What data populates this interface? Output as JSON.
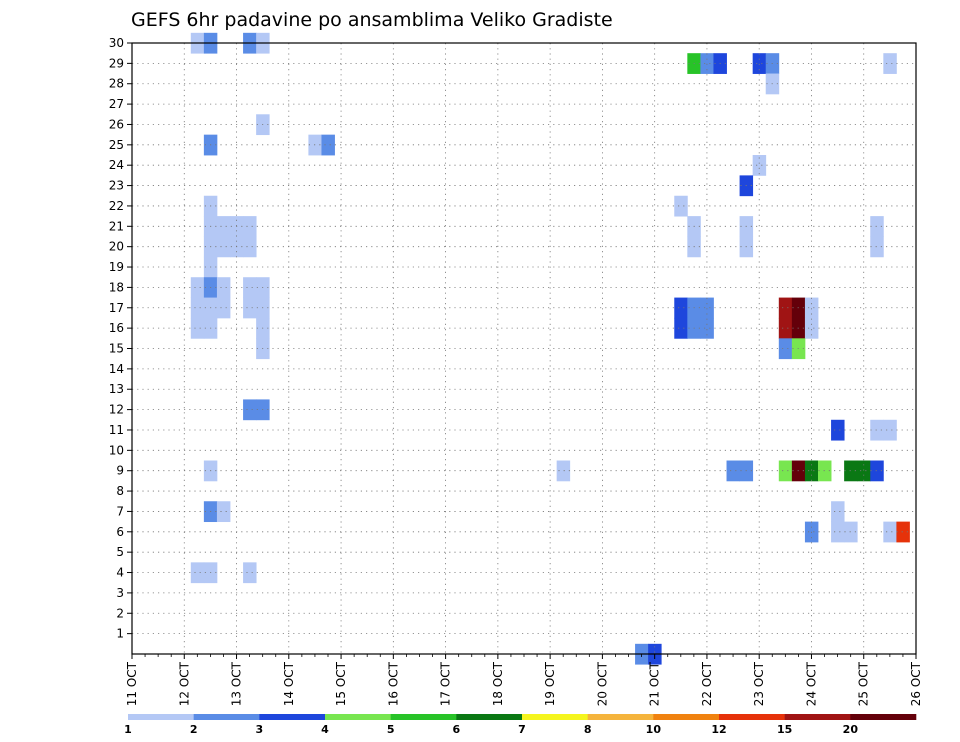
{
  "chart_data": {
    "type": "heatmap",
    "title": "GEFS 6hr padavine po ansamblima Veliko Gradiste",
    "xlabel": "",
    "ylabel": "",
    "x_tick_labels": [
      "11 OCT",
      "12 OCT",
      "13 OCT",
      "14 OCT",
      "15 OCT",
      "16 OCT",
      "17 OCT",
      "18 OCT",
      "19 OCT",
      "20 OCT",
      "21 OCT",
      "22 OCT",
      "23 OCT",
      "24 OCT",
      "25 OCT",
      "26 OCT"
    ],
    "y_tick_labels": [
      "1",
      "2",
      "3",
      "4",
      "5",
      "6",
      "7",
      "8",
      "9",
      "10",
      "11",
      "12",
      "13",
      "14",
      "15",
      "16",
      "17",
      "18",
      "19",
      "20",
      "21",
      "22",
      "23",
      "24",
      "25",
      "26",
      "27",
      "28",
      "29",
      "30"
    ],
    "xlim_days": [
      11,
      26
    ],
    "ylim_members": [
      0,
      30
    ],
    "grid": true,
    "colorbar": {
      "labels": [
        "1",
        "2",
        "3",
        "4",
        "5",
        "6",
        "7",
        "8",
        "10",
        "12",
        "15",
        "20"
      ],
      "colors": [
        "#b4c8f5",
        "#5a8ce6",
        "#1e46dc",
        "#78e650",
        "#28c328",
        "#0a7814",
        "#f5f51e",
        "#f5b43c",
        "#f0820f",
        "#e6320a",
        "#a01414",
        "#64000a"
      ]
    },
    "cells": [
      {
        "day": 12.25,
        "member": 30,
        "level": 0
      },
      {
        "day": 12.5,
        "member": 30,
        "level": 1
      },
      {
        "day": 13.25,
        "member": 30,
        "level": 1
      },
      {
        "day": 13.5,
        "member": 30,
        "level": 0
      },
      {
        "day": 21.75,
        "member": 29,
        "level": 4
      },
      {
        "day": 22.0,
        "member": 29,
        "level": 1
      },
      {
        "day": 22.25,
        "member": 29,
        "level": 2
      },
      {
        "day": 23.0,
        "member": 29,
        "level": 2
      },
      {
        "day": 23.25,
        "member": 29,
        "level": 1
      },
      {
        "day": 25.5,
        "member": 29,
        "level": 0
      },
      {
        "day": 23.25,
        "member": 28,
        "level": 0
      },
      {
        "day": 13.5,
        "member": 26,
        "level": 0
      },
      {
        "day": 12.5,
        "member": 25,
        "level": 1
      },
      {
        "day": 14.5,
        "member": 25,
        "level": 0
      },
      {
        "day": 14.75,
        "member": 25,
        "level": 1
      },
      {
        "day": 23.0,
        "member": 24,
        "level": 0
      },
      {
        "day": 22.75,
        "member": 23,
        "level": 2
      },
      {
        "day": 12.5,
        "member": 22,
        "level": 0
      },
      {
        "day": 21.5,
        "member": 22,
        "level": 0
      },
      {
        "day": 12.5,
        "member": 21,
        "level": 0
      },
      {
        "day": 12.75,
        "member": 21,
        "level": 0
      },
      {
        "day": 13.0,
        "member": 21,
        "level": 0
      },
      {
        "day": 13.25,
        "member": 21,
        "level": 0
      },
      {
        "day": 21.75,
        "member": 21,
        "level": 0
      },
      {
        "day": 22.75,
        "member": 21,
        "level": 0
      },
      {
        "day": 25.25,
        "member": 21,
        "level": 0
      },
      {
        "day": 12.5,
        "member": 20,
        "level": 0
      },
      {
        "day": 12.75,
        "member": 20,
        "level": 0
      },
      {
        "day": 13.0,
        "member": 20,
        "level": 0
      },
      {
        "day": 13.25,
        "member": 20,
        "level": 0
      },
      {
        "day": 21.75,
        "member": 20,
        "level": 0
      },
      {
        "day": 22.75,
        "member": 20,
        "level": 0
      },
      {
        "day": 25.25,
        "member": 20,
        "level": 0
      },
      {
        "day": 12.5,
        "member": 19,
        "level": 0
      },
      {
        "day": 12.25,
        "member": 18,
        "level": 0
      },
      {
        "day": 12.5,
        "member": 18,
        "level": 1
      },
      {
        "day": 12.75,
        "member": 18,
        "level": 0
      },
      {
        "day": 13.25,
        "member": 18,
        "level": 0
      },
      {
        "day": 13.5,
        "member": 18,
        "level": 0
      },
      {
        "day": 12.25,
        "member": 17,
        "level": 0
      },
      {
        "day": 12.5,
        "member": 17,
        "level": 0
      },
      {
        "day": 12.75,
        "member": 17,
        "level": 0
      },
      {
        "day": 13.25,
        "member": 17,
        "level": 0
      },
      {
        "day": 13.5,
        "member": 17,
        "level": 0
      },
      {
        "day": 21.5,
        "member": 17,
        "level": 2
      },
      {
        "day": 21.75,
        "member": 17,
        "level": 1
      },
      {
        "day": 22.0,
        "member": 17,
        "level": 1
      },
      {
        "day": 23.5,
        "member": 17,
        "level": 10
      },
      {
        "day": 23.75,
        "member": 17,
        "level": 11
      },
      {
        "day": 24.0,
        "member": 17,
        "level": 0
      },
      {
        "day": 12.25,
        "member": 16,
        "level": 0
      },
      {
        "day": 12.5,
        "member": 16,
        "level": 0
      },
      {
        "day": 13.5,
        "member": 16,
        "level": 0
      },
      {
        "day": 21.5,
        "member": 16,
        "level": 2
      },
      {
        "day": 21.75,
        "member": 16,
        "level": 1
      },
      {
        "day": 22.0,
        "member": 16,
        "level": 1
      },
      {
        "day": 23.5,
        "member": 16,
        "level": 10
      },
      {
        "day": 23.75,
        "member": 16,
        "level": 11
      },
      {
        "day": 24.0,
        "member": 16,
        "level": 0
      },
      {
        "day": 13.5,
        "member": 15,
        "level": 0
      },
      {
        "day": 23.5,
        "member": 15,
        "level": 1
      },
      {
        "day": 23.75,
        "member": 15,
        "level": 3
      },
      {
        "day": 13.25,
        "member": 12,
        "level": 1
      },
      {
        "day": 13.5,
        "member": 12,
        "level": 1
      },
      {
        "day": 24.5,
        "member": 11,
        "level": 2
      },
      {
        "day": 25.25,
        "member": 11,
        "level": 0
      },
      {
        "day": 25.5,
        "member": 11,
        "level": 0
      },
      {
        "day": 12.5,
        "member": 9,
        "level": 0
      },
      {
        "day": 19.25,
        "member": 9,
        "level": 0
      },
      {
        "day": 22.5,
        "member": 9,
        "level": 1
      },
      {
        "day": 22.75,
        "member": 9,
        "level": 1
      },
      {
        "day": 23.5,
        "member": 9,
        "level": 3
      },
      {
        "day": 23.75,
        "member": 9,
        "level": 11
      },
      {
        "day": 24.0,
        "member": 9,
        "level": 5
      },
      {
        "day": 24.25,
        "member": 9,
        "level": 3
      },
      {
        "day": 24.75,
        "member": 9,
        "level": 5
      },
      {
        "day": 25.0,
        "member": 9,
        "level": 5
      },
      {
        "day": 25.25,
        "member": 9,
        "level": 2
      },
      {
        "day": 12.5,
        "member": 7,
        "level": 1
      },
      {
        "day": 12.75,
        "member": 7,
        "level": 0
      },
      {
        "day": 24.5,
        "member": 7,
        "level": 0
      },
      {
        "day": 24.0,
        "member": 6,
        "level": 1
      },
      {
        "day": 24.5,
        "member": 6,
        "level": 0
      },
      {
        "day": 24.75,
        "member": 6,
        "level": 0
      },
      {
        "day": 25.5,
        "member": 6,
        "level": 0
      },
      {
        "day": 25.75,
        "member": 6,
        "level": 9
      },
      {
        "day": 12.25,
        "member": 4,
        "level": 0
      },
      {
        "day": 12.5,
        "member": 4,
        "level": 0
      },
      {
        "day": 13.25,
        "member": 4,
        "level": 0
      },
      {
        "day": 20.75,
        "member": 0,
        "level": 1
      },
      {
        "day": 21.0,
        "member": 0,
        "level": 2
      }
    ]
  }
}
